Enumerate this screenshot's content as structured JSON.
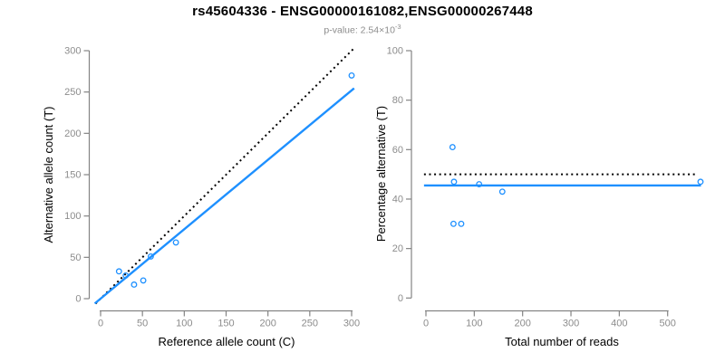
{
  "header": {
    "title": "rs45604336 - ENSG00000161082,ENSG00000267448",
    "pvalue_prefix": "p-value: 2.54×10",
    "pvalue_exponent": "-3"
  },
  "colors": {
    "accent": "#1E90FF",
    "line_black": "#000000",
    "axis": "#848484",
    "tick_label": "#8c8c8c",
    "title": "#000000",
    "subtitle": "#8c8c8c",
    "background": "#ffffff"
  },
  "chart_data": [
    {
      "type": "scatter",
      "panel": "left",
      "xlabel": "Reference allele count (C)",
      "ylabel": "Alternative allele count (T)",
      "xlim": [
        0,
        300
      ],
      "ylim": [
        0,
        300
      ],
      "xticks": [
        0,
        50,
        100,
        150,
        200,
        250,
        300
      ],
      "yticks": [
        0,
        50,
        100,
        150,
        200,
        250,
        300
      ],
      "grid": false,
      "points": [
        [
          22,
          33
        ],
        [
          30,
          28
        ],
        [
          40,
          17
        ],
        [
          51,
          22
        ],
        [
          60,
          51
        ],
        [
          90,
          68
        ],
        [
          300,
          270
        ]
      ],
      "lines": [
        {
          "name": "identity-line",
          "style": "dotted",
          "color": "#000000",
          "slope": 1,
          "intercept": 0
        },
        {
          "name": "fit-line",
          "style": "solid",
          "color": "#1E90FF",
          "slope": 0.84,
          "intercept": 0
        }
      ]
    },
    {
      "type": "scatter",
      "panel": "right",
      "xlabel": "Total number of reads",
      "ylabel": "Percentage alternative (T)",
      "xlim": [
        0,
        570
      ],
      "ylim": [
        0,
        100
      ],
      "xticks": [
        0,
        100,
        200,
        300,
        400,
        500
      ],
      "yticks": [
        0,
        20,
        40,
        60,
        80,
        100
      ],
      "grid": false,
      "points": [
        [
          55,
          61
        ],
        [
          58,
          47
        ],
        [
          57,
          30
        ],
        [
          73,
          30
        ],
        [
          110,
          46
        ],
        [
          158,
          43
        ],
        [
          568,
          47
        ]
      ],
      "lines": [
        {
          "name": "expected-ratio-line",
          "style": "dotted",
          "color": "#000000",
          "slope": 0,
          "intercept": 50
        },
        {
          "name": "observed-ratio-line",
          "style": "solid",
          "color": "#1E90FF",
          "slope": 0,
          "intercept": 45.5
        }
      ]
    }
  ]
}
